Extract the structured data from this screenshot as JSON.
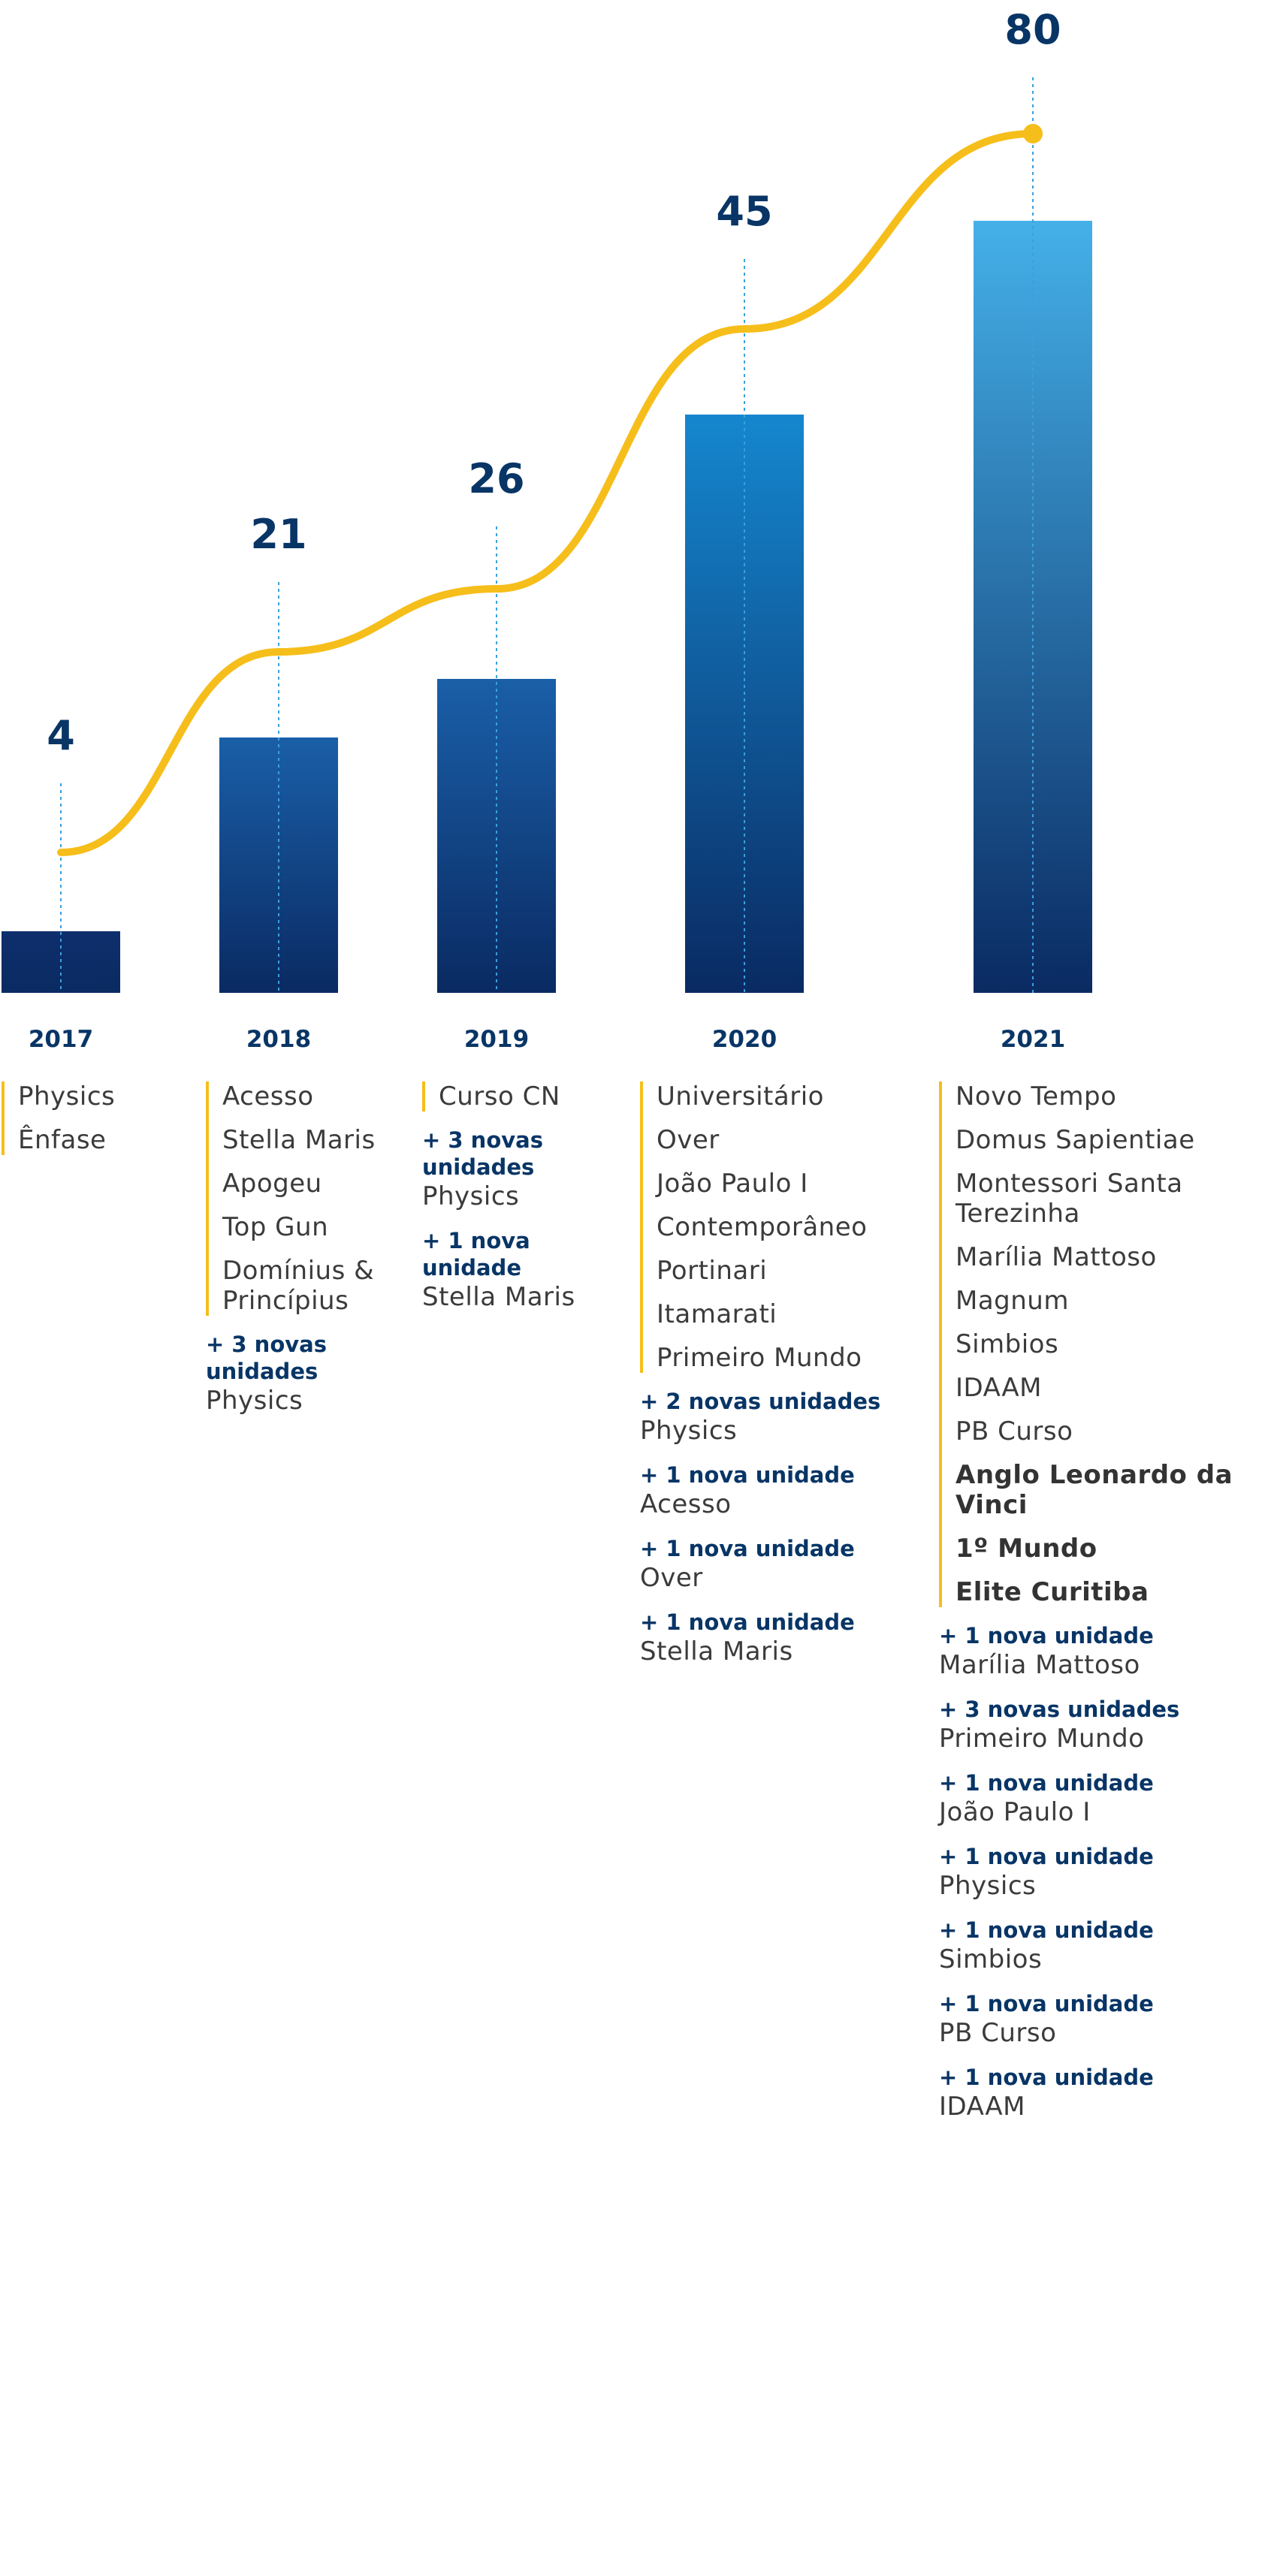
{
  "chart_data": {
    "type": "bar",
    "categories": [
      "2017",
      "2018",
      "2019",
      "2020",
      "2021"
    ],
    "values": [
      4,
      21,
      26,
      45,
      80
    ],
    "overlay": "line",
    "title": "",
    "xlabel": "",
    "ylabel": ""
  },
  "colors": {
    "navy": "#083566",
    "bar_top": [
      "#0e2f6c",
      "#1a5fa8",
      "#1a5fa8",
      "#1587cf",
      "#45b0e8"
    ],
    "bar_bottom": "#0a2a62",
    "line": "#f6be1a",
    "guide": "#3aa0dc"
  },
  "columns": [
    {
      "year": "2017",
      "items": [
        {
          "text": "Physics"
        },
        {
          "text": "Ênfase"
        }
      ],
      "additions": []
    },
    {
      "year": "2018",
      "items": [
        {
          "text": "Acesso"
        },
        {
          "text": "Stella Maris"
        },
        {
          "text": "Apogeu"
        },
        {
          "text": "Top Gun"
        },
        {
          "text": "Domínius & Princípius"
        }
      ],
      "additions": [
        {
          "label": "+ 3 novas unidades",
          "name": "Physics"
        }
      ]
    },
    {
      "year": "2019",
      "items": [
        {
          "text": "Curso CN"
        }
      ],
      "additions": [
        {
          "label": "+ 3 novas unidades",
          "name": "Physics"
        },
        {
          "label": "+ 1 nova unidade",
          "name": "Stella Maris"
        }
      ]
    },
    {
      "year": "2020",
      "items": [
        {
          "text": "Universitário"
        },
        {
          "text": "Over"
        },
        {
          "text": "João Paulo I"
        },
        {
          "text": "Contemporâneo"
        },
        {
          "text": "Portinari"
        },
        {
          "text": "Itamarati"
        },
        {
          "text": "Primeiro Mundo"
        }
      ],
      "additions": [
        {
          "label": "+ 2 novas unidades",
          "name": "Physics"
        },
        {
          "label": "+ 1 nova unidade",
          "name": "Acesso"
        },
        {
          "label": "+ 1 nova unidade",
          "name": "Over"
        },
        {
          "label": "+ 1 nova unidade",
          "name": "Stella Maris"
        }
      ]
    },
    {
      "year": "2021",
      "items": [
        {
          "text": "Novo Tempo"
        },
        {
          "text": "Domus Sapientiae"
        },
        {
          "text": "Montessori Santa Terezinha"
        },
        {
          "text": "Marília Mattoso"
        },
        {
          "text": "Magnum"
        },
        {
          "text": "Simbios"
        },
        {
          "text": "IDAAM"
        },
        {
          "text": "PB Curso"
        },
        {
          "text": "Anglo Leonardo da Vinci",
          "bold": true
        },
        {
          "text": "1º Mundo",
          "bold": true
        },
        {
          "text": "Elite Curitiba",
          "bold": true
        }
      ],
      "additions": [
        {
          "label": "+ 1 nova unidade",
          "name": "Marília Mattoso"
        },
        {
          "label": "+ 3 novas unidades",
          "name": "Primeiro Mundo"
        },
        {
          "label": "+ 1 nova unidade",
          "name": "João Paulo I"
        },
        {
          "label": "+ 1 nova unidade",
          "name": "Physics"
        },
        {
          "label": "+ 1 nova unidade",
          "name": "Simbios"
        },
        {
          "label": "+ 1 nova unidade",
          "name": "PB Curso"
        },
        {
          "label": "+ 1 nova unidade",
          "name": "IDAAM"
        }
      ]
    }
  ]
}
